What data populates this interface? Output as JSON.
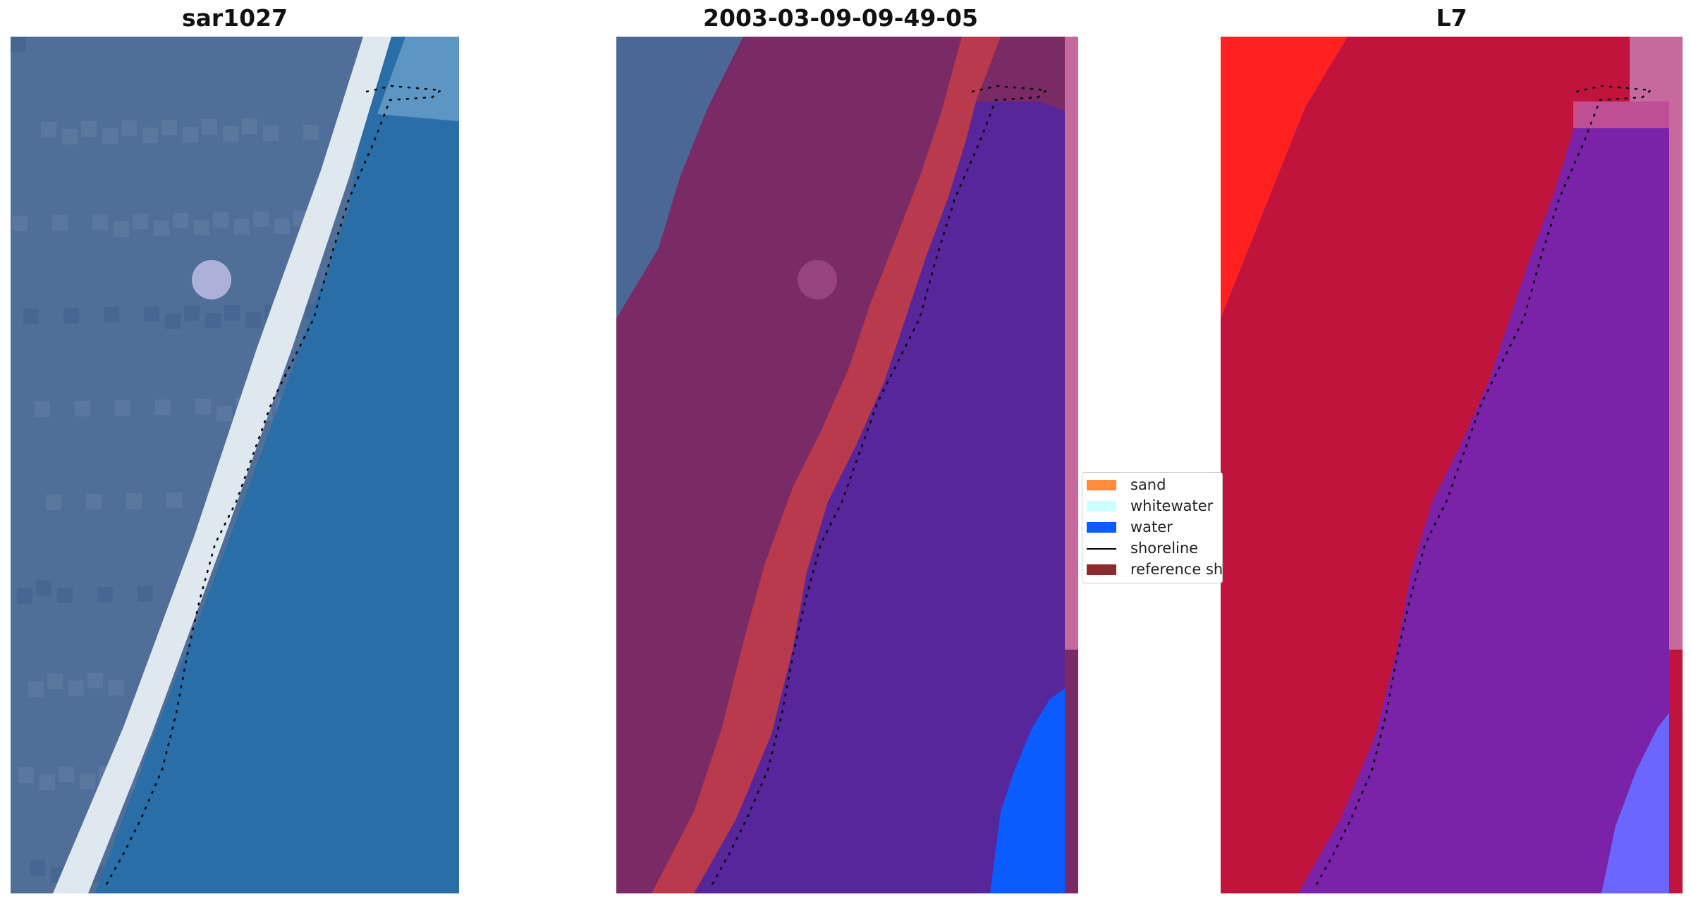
{
  "panels": [
    {
      "title": "sar1027"
    },
    {
      "title": "2003-03-09-09-49-05"
    },
    {
      "title": "L7"
    }
  ],
  "legend": {
    "placement": "center-left",
    "items": [
      {
        "label": "sand",
        "color": "#ff8c3c",
        "kind": "patch"
      },
      {
        "label": "whitewater",
        "color": "#ccffff",
        "kind": "patch"
      },
      {
        "label": "water",
        "color": "#0a5cff",
        "kind": "patch"
      },
      {
        "label": "shoreline",
        "color": "#000000",
        "kind": "line"
      },
      {
        "label": "reference shoreline",
        "color": "#8b2b2b",
        "kind": "patch"
      }
    ]
  },
  "colors": {
    "land_blue": "#4f6f99",
    "beach": "#dfe8ee",
    "ocean": "#2a6ea7",
    "land_purple": "#7a2a65",
    "sand_class": "#b93a4c",
    "water_class": "#56269a",
    "water_blue": "#0a5cff",
    "false_land": "#c0143c",
    "false_water": "#7a22a8",
    "false_bright": "#ff2020",
    "edge_pink": "#c66a9e"
  }
}
